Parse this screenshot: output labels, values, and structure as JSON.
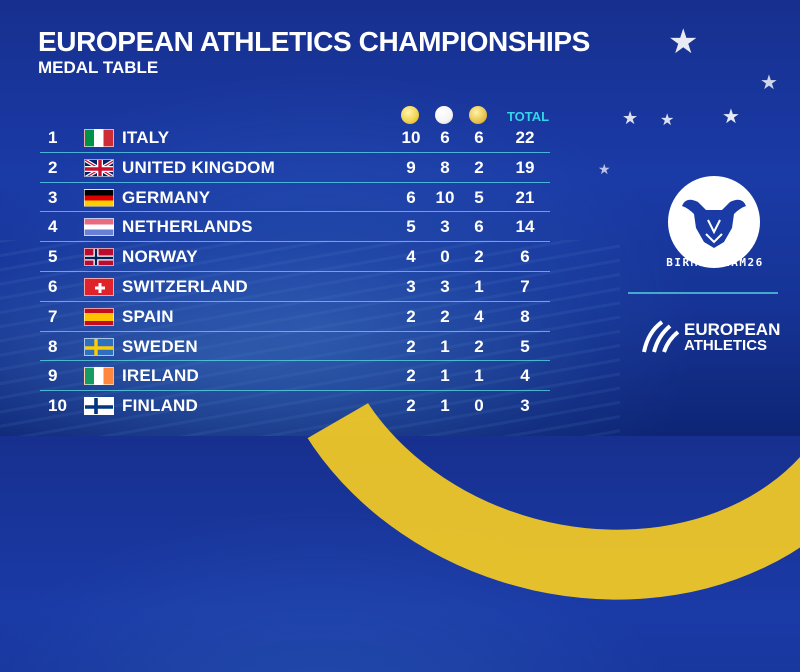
{
  "header": {
    "title": "EUROPEAN ATHLETICS CHAMPIONSHIPS",
    "subtitle": "MEDAL TABLE"
  },
  "columns": {
    "gold_icon": "gold-medal-icon",
    "silver_icon": "silver-medal-icon",
    "bronze_icon": "bronze-medal-icon",
    "total_label": "TOTAL"
  },
  "colors": {
    "gold": "#f2d04a",
    "silver": "#f4f4f4",
    "bronze": "#e8c24a",
    "accent": "#33d6e8",
    "background": "#1a3aa6",
    "track_yellow": "#f0c828"
  },
  "rows": [
    {
      "rank": "1",
      "country": "ITALY",
      "flag": "italy-flag",
      "gold": "10",
      "silver": "6",
      "bronze": "6",
      "total": "22"
    },
    {
      "rank": "2",
      "country": "UNITED KINGDOM",
      "flag": "united-kingdom-flag",
      "gold": "9",
      "silver": "8",
      "bronze": "2",
      "total": "19"
    },
    {
      "rank": "3",
      "country": "GERMANY",
      "flag": "germany-flag",
      "gold": "6",
      "silver": "10",
      "bronze": "5",
      "total": "21"
    },
    {
      "rank": "4",
      "country": "NETHERLANDS",
      "flag": "netherlands-flag",
      "gold": "5",
      "silver": "3",
      "bronze": "6",
      "total": "14"
    },
    {
      "rank": "5",
      "country": "NORWAY",
      "flag": "norway-flag",
      "gold": "4",
      "silver": "0",
      "bronze": "2",
      "total": "6"
    },
    {
      "rank": "6",
      "country": "SWITZERLAND",
      "flag": "switzerland-flag",
      "gold": "3",
      "silver": "3",
      "bronze": "1",
      "total": "7"
    },
    {
      "rank": "7",
      "country": "SPAIN",
      "flag": "spain-flag",
      "gold": "2",
      "silver": "2",
      "bronze": "4",
      "total": "8"
    },
    {
      "rank": "8",
      "country": "SWEDEN",
      "flag": "sweden-flag",
      "gold": "2",
      "silver": "1",
      "bronze": "2",
      "total": "5"
    },
    {
      "rank": "9",
      "country": "IRELAND",
      "flag": "ireland-flag",
      "gold": "2",
      "silver": "1",
      "bronze": "1",
      "total": "4"
    },
    {
      "rank": "10",
      "country": "FINLAND",
      "flag": "finland-flag",
      "gold": "2",
      "silver": "1",
      "bronze": "0",
      "total": "3"
    }
  ],
  "branding": {
    "event_logo": "birmingham26-bull-logo",
    "event_name": "BIRMINGHAM26",
    "org_logo": "european-athletics-logo",
    "org_line1": "EUROPEAN",
    "org_line2": "ATHLETICS"
  }
}
